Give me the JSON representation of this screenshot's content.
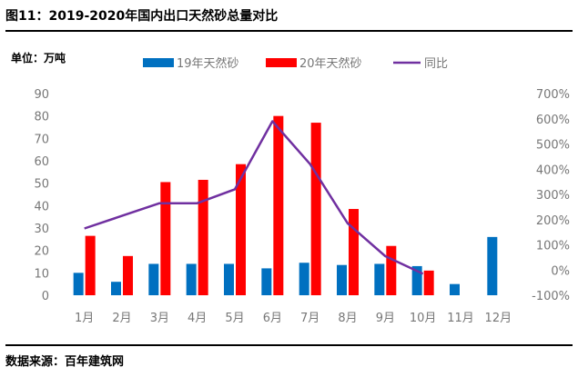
{
  "header": {
    "title": "图11：2019-2020年国内出口天然砂总量对比",
    "unit": "单位：万吨"
  },
  "footer": {
    "source": "数据来源：百年建筑网"
  },
  "colors": {
    "series_2019": "#0070C0",
    "series_2020": "#FF0000",
    "yoy": "#7030A0",
    "tick_text": "#777777"
  },
  "chart_data": {
    "type": "bar",
    "categories": [
      "1月",
      "2月",
      "3月",
      "4月",
      "5月",
      "6月",
      "7月",
      "8月",
      "9月",
      "10月",
      "11月",
      "12月"
    ],
    "series": [
      {
        "name": "19年天然砂",
        "kind": "bar",
        "axis": "left",
        "values": [
          10,
          6,
          14,
          14,
          14,
          12,
          14.5,
          13.5,
          14,
          13,
          5,
          26
        ]
      },
      {
        "name": "20年天然砂",
        "kind": "bar",
        "axis": "left",
        "values": [
          26.5,
          17.5,
          50.5,
          51.5,
          58.5,
          80,
          77,
          38.5,
          22,
          11,
          null,
          null
        ]
      },
      {
        "name": "同比",
        "kind": "line",
        "axis": "right",
        "unit": "%",
        "values": [
          165,
          215,
          265,
          265,
          320,
          590,
          420,
          185,
          55,
          -15,
          null,
          null
        ]
      }
    ],
    "left_axis": {
      "ylim": [
        0,
        90
      ],
      "ticks": [
        0,
        10,
        20,
        30,
        40,
        50,
        60,
        70,
        80,
        90
      ],
      "tick_labels": [
        "0",
        "10",
        "20",
        "30",
        "40",
        "50",
        "60",
        "70",
        "80",
        "90"
      ]
    },
    "right_axis": {
      "ylim": [
        -100,
        700
      ],
      "ticks": [
        -100,
        0,
        100,
        200,
        300,
        400,
        500,
        600,
        700
      ],
      "tick_labels": [
        "-100%",
        "0%",
        "100%",
        "200%",
        "300%",
        "400%",
        "500%",
        "600%",
        "700%"
      ]
    },
    "legend_position": "top",
    "grid": false
  }
}
